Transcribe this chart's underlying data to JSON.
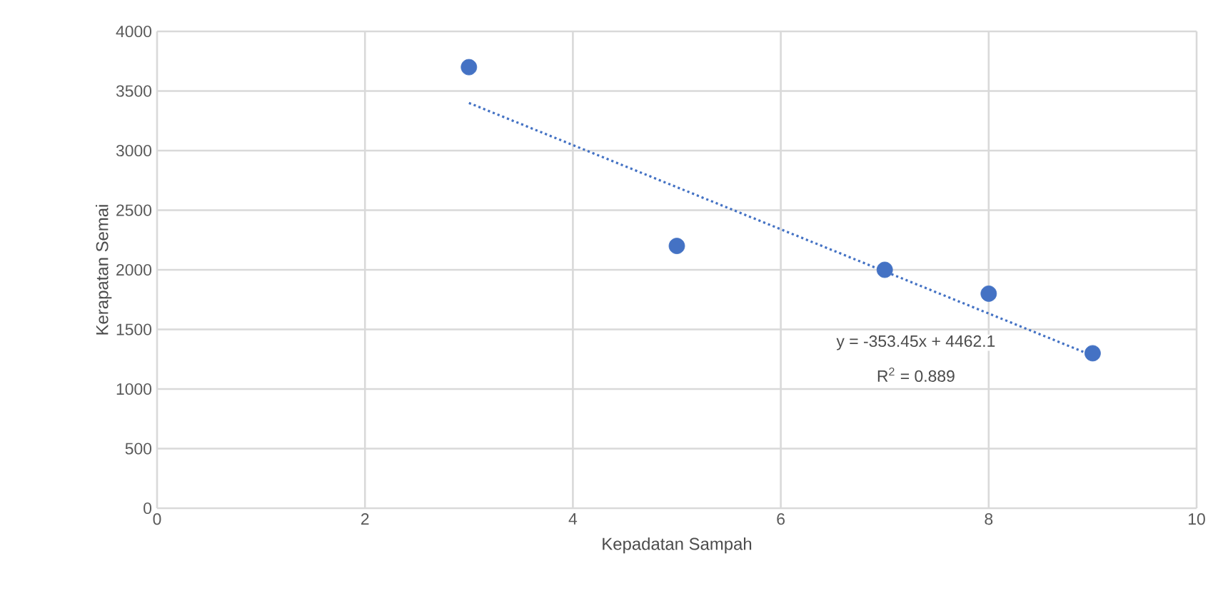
{
  "chart_data": {
    "type": "scatter",
    "xlabel": "Kepadatan Sampah",
    "ylabel": "Kerapatan Semai",
    "xlim": [
      0,
      10
    ],
    "xticks": [
      0,
      2,
      4,
      6,
      8,
      10
    ],
    "ylim": [
      0,
      4000
    ],
    "yticks": [
      0,
      500,
      1000,
      1500,
      2000,
      2500,
      3000,
      3500,
      4000
    ],
    "grid": true,
    "series": [
      {
        "color": "#4472c4",
        "x": [
          3,
          5,
          7,
          8,
          9
        ],
        "values": [
          3700,
          2200,
          2000,
          1800,
          1300
        ],
        "marker": "circle"
      },
      {
        "type": "line",
        "color": "#4472c4",
        "x": [
          3,
          9
        ],
        "values": [
          3400,
          1280
        ],
        "marker": "none",
        "line_style": "dotted"
      }
    ],
    "annotations": [
      "y = -353.45x + 4462.1",
      "R$^{2}$ = 0.889"
    ]
  }
}
